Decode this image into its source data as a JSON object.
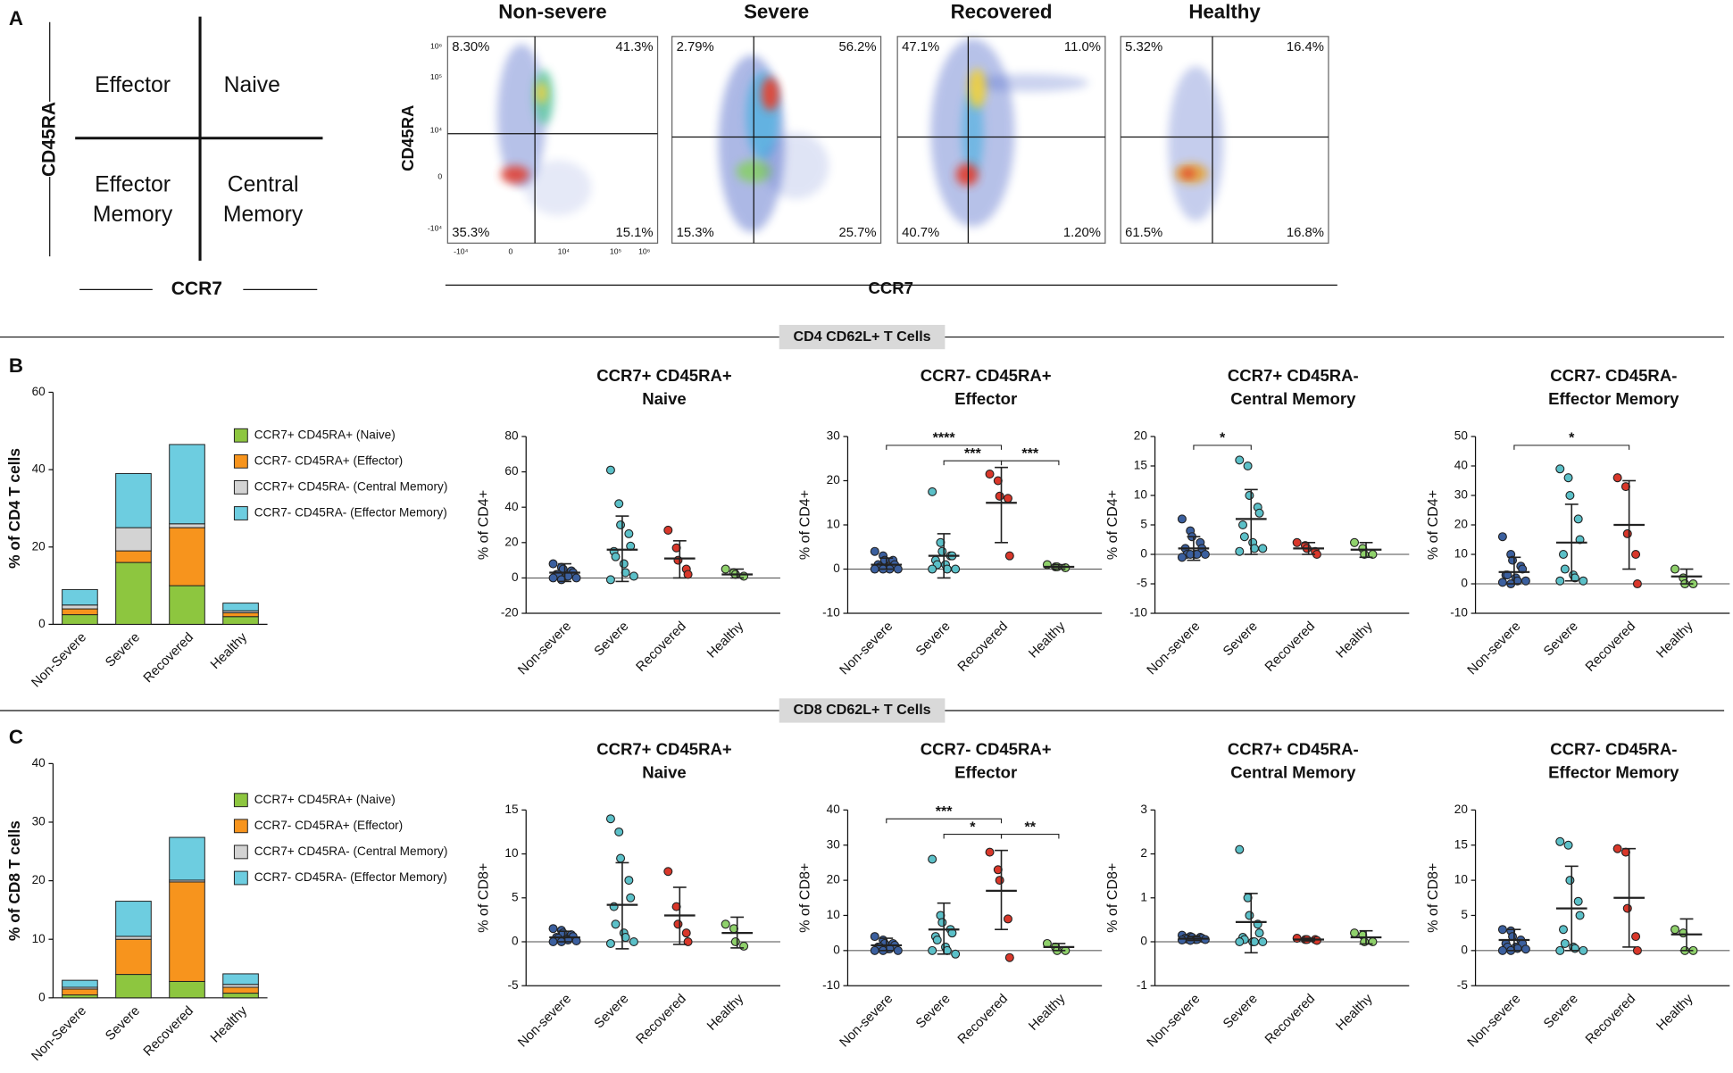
{
  "panels": {
    "a": "A",
    "b": "B",
    "c": "C"
  },
  "sections": [
    "CD4 CD62L+ T Cells",
    "CD8 CD62L+ T Cells"
  ],
  "diagram": {
    "effector": "Effector",
    "naive": "Naive",
    "effector_memory": [
      "Effector",
      "Memory"
    ],
    "central_memory": [
      "Central",
      "Memory"
    ],
    "y_label": "CD45RA",
    "x_label": "CCR7"
  },
  "flow": {
    "y_label": "CD45RA",
    "x_label": "CCR7",
    "y_tick_labels": [
      "10⁶",
      "10⁵",
      "10⁴",
      "0",
      "-10⁴"
    ],
    "x_tick_labels": [
      "-10⁴",
      "0",
      "10⁴",
      "10⁵",
      "10⁶"
    ],
    "plots": [
      {
        "title": "Non-severe",
        "quadrants": [
          "8.30%",
          "41.3%",
          "35.3%",
          "15.1%"
        ]
      },
      {
        "title": "Severe",
        "quadrants": [
          "2.79%",
          "56.2%",
          "15.3%",
          "25.7%"
        ]
      },
      {
        "title": "Recovered",
        "quadrants": [
          "47.1%",
          "11.0%",
          "40.7%",
          "1.20%"
        ]
      },
      {
        "title": "Healthy",
        "quadrants": [
          "5.32%",
          "16.4%",
          "61.5%",
          "16.8%"
        ]
      }
    ]
  },
  "chart_data": [
    {
      "type": "stacked_bar",
      "y_label": "% of CD4 T cells",
      "categories": [
        "Non-Severe",
        "Severe",
        "Recovered",
        "Healthy"
      ],
      "ylim": [
        0,
        60
      ],
      "yticks": [
        0,
        20,
        40,
        60
      ],
      "series": [
        {
          "name": "CCR7+ CD45RA+ (Naive)",
          "color": "#8dc63f",
          "values": [
            2.5,
            16,
            10,
            2
          ]
        },
        {
          "name": "CCR7- CD45RA+ (Effector)",
          "color": "#f7941d",
          "values": [
            1.5,
            3,
            15,
            1
          ]
        },
        {
          "name": "CCR7+ CD45RA- (Central Memory)",
          "color": "#d3d3d3",
          "values": [
            1,
            6,
            1,
            0.5
          ]
        },
        {
          "name": "CCR7- CD45RA- (Effector Memory)",
          "color": "#6dcde0",
          "values": [
            4,
            14,
            20.5,
            2
          ]
        }
      ]
    },
    {
      "type": "dot",
      "title": [
        "CCR7+ CD45RA+",
        "Naive"
      ],
      "y_label": "% of CD4+",
      "categories": [
        "Non-severe",
        "Severe",
        "Recovered",
        "Healthy"
      ],
      "colors": [
        "#3b5f9e",
        "#5bc0c8",
        "#d9372a",
        "#8fd16b"
      ],
      "ylim": [
        -20,
        80
      ],
      "yticks": [
        -20,
        0,
        20,
        40,
        60,
        80
      ],
      "points": [
        [
          8,
          6,
          5,
          4,
          3,
          2,
          2,
          1,
          1,
          0,
          0,
          -1
        ],
        [
          61,
          42,
          30,
          25,
          18,
          15,
          12,
          8,
          3,
          1,
          -1
        ],
        [
          27,
          17,
          10,
          5,
          2
        ],
        [
          5,
          3,
          2,
          1
        ]
      ],
      "means": [
        3,
        16,
        11,
        2
      ],
      "sd_low": [
        -2,
        -2,
        0,
        0
      ],
      "sd_high": [
        8,
        35,
        21,
        5
      ],
      "brackets": []
    },
    {
      "type": "dot",
      "title": [
        "CCR7- CD45RA+",
        "Effector"
      ],
      "y_label": "% of CD4+",
      "categories": [
        "Non-severe",
        "Severe",
        "Recovered",
        "Healthy"
      ],
      "colors": [
        "#3b5f9e",
        "#5bc0c8",
        "#d9372a",
        "#8fd16b"
      ],
      "ylim": [
        -10,
        30
      ],
      "yticks": [
        -10,
        0,
        10,
        20,
        30
      ],
      "points": [
        [
          4,
          3,
          2,
          2,
          1,
          1,
          0.5,
          0.5,
          0,
          0,
          0,
          0
        ],
        [
          17.5,
          6,
          4,
          3,
          3,
          2,
          1,
          1,
          0,
          0,
          0
        ],
        [
          21.5,
          20,
          16.5,
          16,
          3
        ],
        [
          1,
          0.5,
          0.5,
          0.3
        ]
      ],
      "means": [
        1,
        3,
        15,
        0.5
      ],
      "sd_low": [
        0,
        -2,
        6,
        0
      ],
      "sd_high": [
        2.5,
        8,
        23,
        1
      ],
      "brackets": [
        {
          "label": "****",
          "between": [
            "Non-severe",
            "Recovered"
          ]
        },
        {
          "label": "***",
          "between": [
            "Severe",
            "Recovered"
          ]
        },
        {
          "label": "***",
          "between": [
            "Recovered",
            "Healthy"
          ]
        }
      ]
    },
    {
      "type": "dot",
      "title": [
        "CCR7+ CD45RA-",
        "Central Memory"
      ],
      "y_label": "% of CD4+",
      "categories": [
        "Non-severe",
        "Severe",
        "Recovered",
        "Healthy"
      ],
      "colors": [
        "#3b5f9e",
        "#5bc0c8",
        "#d9372a",
        "#8fd16b"
      ],
      "ylim": [
        -10,
        20
      ],
      "yticks": [
        -10,
        -5,
        0,
        5,
        10,
        15,
        20
      ],
      "points": [
        [
          6,
          4,
          3,
          2,
          1,
          1,
          0,
          0,
          0,
          0,
          -0.5,
          0
        ],
        [
          16,
          15,
          10,
          8,
          7,
          5,
          3,
          2,
          1,
          1,
          0.5
        ],
        [
          2,
          1.5,
          1,
          0.5,
          0
        ],
        [
          2,
          1,
          0,
          0
        ]
      ],
      "means": [
        1,
        6,
        1,
        0.8
      ],
      "sd_low": [
        -1,
        0,
        0,
        -0.5
      ],
      "sd_high": [
        3,
        11,
        2,
        2
      ],
      "brackets": [
        {
          "label": "*",
          "between": [
            "Non-severe",
            "Severe"
          ]
        }
      ]
    },
    {
      "type": "dot",
      "title": [
        "CCR7- CD45RA-",
        "Effector Memory"
      ],
      "y_label": "% of CD4+",
      "categories": [
        "Non-severe",
        "Severe",
        "Recovered",
        "Healthy"
      ],
      "colors": [
        "#3b5f9e",
        "#5bc0c8",
        "#d9372a",
        "#8fd16b"
      ],
      "ylim": [
        -10,
        50
      ],
      "yticks": [
        -10,
        0,
        10,
        20,
        30,
        40,
        50
      ],
      "points": [
        [
          16,
          10,
          8,
          6,
          5,
          3,
          3,
          2,
          1,
          1,
          0.5,
          0
        ],
        [
          39,
          36,
          30,
          22,
          15,
          10,
          5,
          3,
          2,
          1,
          1
        ],
        [
          36,
          33,
          17,
          10,
          0
        ],
        [
          5,
          2,
          0,
          0
        ]
      ],
      "means": [
        4,
        14,
        20,
        2.5
      ],
      "sd_low": [
        0,
        1,
        5,
        0
      ],
      "sd_high": [
        9,
        27,
        35,
        5
      ],
      "brackets": [
        {
          "label": "*",
          "between": [
            "Non-severe",
            "Recovered"
          ]
        }
      ]
    },
    {
      "type": "stacked_bar",
      "y_label": "% of CD8 T cells",
      "categories": [
        "Non-Severe",
        "Severe",
        "Recovered",
        "Healthy"
      ],
      "ylim": [
        0,
        40
      ],
      "yticks": [
        0,
        10,
        20,
        30,
        40
      ],
      "series": [
        {
          "name": "CCR7+ CD45RA+ (Naive)",
          "color": "#8dc63f",
          "values": [
            0.5,
            4,
            2.8,
            0.8
          ]
        },
        {
          "name": "CCR7- CD45RA+ (Effector)",
          "color": "#f7941d",
          "values": [
            1,
            6,
            17,
            1
          ]
        },
        {
          "name": "CCR7+ CD45RA- (Central Memory)",
          "color": "#d3d3d3",
          "values": [
            0.3,
            0.5,
            0.3,
            0.5
          ]
        },
        {
          "name": "CCR7- CD45RA- (Effector Memory)",
          "color": "#6dcde0",
          "values": [
            1.2,
            6,
            7.3,
            1.8
          ]
        }
      ]
    },
    {
      "type": "dot",
      "title": [
        "CCR7+ CD45RA+",
        "Naive"
      ],
      "y_label": "% of CD8+",
      "categories": [
        "Non-severe",
        "Severe",
        "Recovered",
        "Healthy"
      ],
      "colors": [
        "#3b5f9e",
        "#5bc0c8",
        "#d9372a",
        "#8fd16b"
      ],
      "ylim": [
        -5,
        15
      ],
      "yticks": [
        -5,
        0,
        5,
        10,
        15
      ],
      "points": [
        [
          1.5,
          1.3,
          1,
          0.8,
          0.6,
          0.5,
          0.4,
          0.3,
          0.2,
          0.1,
          0,
          0
        ],
        [
          14,
          12.5,
          9.5,
          7,
          5,
          4,
          2,
          1,
          0.5,
          0,
          -0.2
        ],
        [
          8,
          4,
          2,
          1,
          0
        ],
        [
          2,
          1.5,
          0,
          -0.5
        ]
      ],
      "means": [
        0.5,
        4.2,
        3,
        1
      ],
      "sd_low": [
        0,
        -0.8,
        -0.3,
        -0.7
      ],
      "sd_high": [
        1.2,
        9,
        6.2,
        2.8
      ],
      "brackets": []
    },
    {
      "type": "dot",
      "title": [
        "CCR7- CD45RA+",
        "Effector"
      ],
      "y_label": "% of CD8+",
      "categories": [
        "Non-severe",
        "Severe",
        "Recovered",
        "Healthy"
      ],
      "colors": [
        "#3b5f9e",
        "#5bc0c8",
        "#d9372a",
        "#8fd16b"
      ],
      "ylim": [
        -10,
        40
      ],
      "yticks": [
        -10,
        0,
        10,
        20,
        30,
        40
      ],
      "points": [
        [
          4,
          3,
          2,
          2,
          1.5,
          1,
          1,
          0.5,
          0.5,
          0,
          0,
          0
        ],
        [
          26,
          10,
          8,
          6,
          5,
          4,
          3,
          1,
          0,
          -1,
          0
        ],
        [
          28,
          23,
          20,
          9,
          -2
        ],
        [
          2,
          1,
          0,
          0
        ]
      ],
      "means": [
        1.5,
        6,
        17,
        1
      ],
      "sd_low": [
        0,
        -1,
        6,
        0
      ],
      "sd_high": [
        3.5,
        13.5,
        28.5,
        2
      ],
      "brackets": [
        {
          "label": "***",
          "between": [
            "Non-severe",
            "Recovered"
          ]
        },
        {
          "label": "*",
          "between": [
            "Severe",
            "Recovered"
          ]
        },
        {
          "label": "**",
          "between": [
            "Recovered",
            "Healthy"
          ]
        }
      ]
    },
    {
      "type": "dot",
      "title": [
        "CCR7+ CD45RA-",
        "Central Memory"
      ],
      "y_label": "% of CD8+",
      "categories": [
        "Non-severe",
        "Severe",
        "Recovered",
        "Healthy"
      ],
      "colors": [
        "#3b5f9e",
        "#5bc0c8",
        "#d9372a",
        "#8fd16b"
      ],
      "ylim": [
        -1,
        3
      ],
      "yticks": [
        -1,
        0,
        1,
        2,
        3
      ],
      "points": [
        [
          0.15,
          0.12,
          0.1,
          0.1,
          0.08,
          0.08,
          0.06,
          0.05,
          0.05,
          0.05,
          0.04,
          0.03
        ],
        [
          2.1,
          1,
          0.6,
          0.4,
          0.2,
          0.1,
          0.05,
          0,
          0,
          0,
          0
        ],
        [
          0.08,
          0.05,
          0.05,
          0.05,
          0.03
        ],
        [
          0.2,
          0.15,
          0,
          0
        ]
      ],
      "means": [
        0.07,
        0.45,
        0.05,
        0.1
      ],
      "sd_low": [
        0.03,
        -0.25,
        0.02,
        -0.05
      ],
      "sd_high": [
        0.12,
        1.1,
        0.08,
        0.25
      ],
      "brackets": []
    },
    {
      "type": "dot",
      "title": [
        "CCR7- CD45RA-",
        "Effector Memory"
      ],
      "y_label": "% of CD8+",
      "categories": [
        "Non-severe",
        "Severe",
        "Recovered",
        "Healthy"
      ],
      "colors": [
        "#3b5f9e",
        "#5bc0c8",
        "#d9372a",
        "#8fd16b"
      ],
      "ylim": [
        -5,
        20
      ],
      "yticks": [
        -5,
        0,
        5,
        10,
        15,
        20
      ],
      "points": [
        [
          3,
          2.8,
          2,
          1.5,
          1,
          1,
          0.5,
          0.5,
          0.3,
          0.2,
          0,
          0
        ],
        [
          15.5,
          15,
          10,
          7,
          5,
          3,
          1,
          0.5,
          0.3,
          0,
          0
        ],
        [
          14.5,
          14,
          6,
          2,
          0
        ],
        [
          3,
          2.5,
          0,
          0
        ]
      ],
      "means": [
        1.5,
        6,
        7.5,
        2.3
      ],
      "sd_low": [
        0,
        0,
        0.5,
        0
      ],
      "sd_high": [
        3,
        12,
        14.5,
        4.5
      ],
      "brackets": []
    }
  ]
}
